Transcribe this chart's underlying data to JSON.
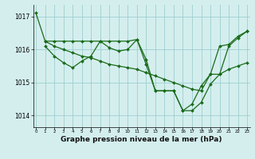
{
  "line1": {
    "x": [
      0,
      1,
      2,
      3,
      4,
      5,
      6,
      7,
      8,
      9,
      10,
      11,
      12,
      13,
      14,
      15,
      16,
      17,
      18,
      19,
      20,
      21,
      22,
      23
    ],
    "y": [
      1017.1,
      1016.25,
      1016.25,
      1016.25,
      1016.25,
      1016.25,
      1016.25,
      1016.25,
      1016.25,
      1016.25,
      1016.25,
      1016.3,
      1015.7,
      1014.75,
      1014.75,
      1014.75,
      1014.15,
      1014.15,
      1014.4,
      1014.95,
      1015.25,
      1016.1,
      1016.35,
      1016.55
    ]
  },
  "line2": {
    "x": [
      1,
      2,
      3,
      4,
      5,
      6,
      7,
      8,
      9,
      10,
      11,
      12,
      13,
      14,
      15,
      16,
      17,
      18,
      19,
      20,
      21,
      22,
      23
    ],
    "y": [
      1016.1,
      1015.8,
      1015.6,
      1015.45,
      1015.65,
      1015.8,
      1016.25,
      1016.05,
      1015.95,
      1016.0,
      1016.3,
      1015.55,
      1014.75,
      1014.75,
      1014.75,
      1014.15,
      1014.35,
      1014.9,
      1015.25,
      1016.1,
      1016.15,
      1016.4,
      1016.55
    ]
  },
  "line3": {
    "x": [
      1,
      2,
      3,
      4,
      5,
      6,
      7,
      8,
      9,
      10,
      11,
      12,
      13,
      14,
      15,
      16,
      17,
      18,
      19,
      20,
      21,
      22,
      23
    ],
    "y": [
      1016.25,
      1016.1,
      1016.0,
      1015.9,
      1015.8,
      1015.75,
      1015.65,
      1015.55,
      1015.5,
      1015.45,
      1015.4,
      1015.3,
      1015.2,
      1015.1,
      1015.0,
      1014.9,
      1014.8,
      1014.75,
      1015.25,
      1015.25,
      1015.4,
      1015.5,
      1015.6
    ]
  },
  "line_color": "#1a6b1a",
  "marker": "D",
  "markersize": 2.0,
  "linewidth": 0.9,
  "bg_color": "#d4eeee",
  "grid_color": "#9ecece",
  "xlabel": "Graphe pression niveau de la mer (hPa)",
  "xlabel_fontsize": 6.5,
  "ylabel_ticks": [
    1014,
    1015,
    1016,
    1017
  ],
  "ylim": [
    1013.65,
    1017.35
  ],
  "xlim": [
    -0.3,
    23.3
  ]
}
